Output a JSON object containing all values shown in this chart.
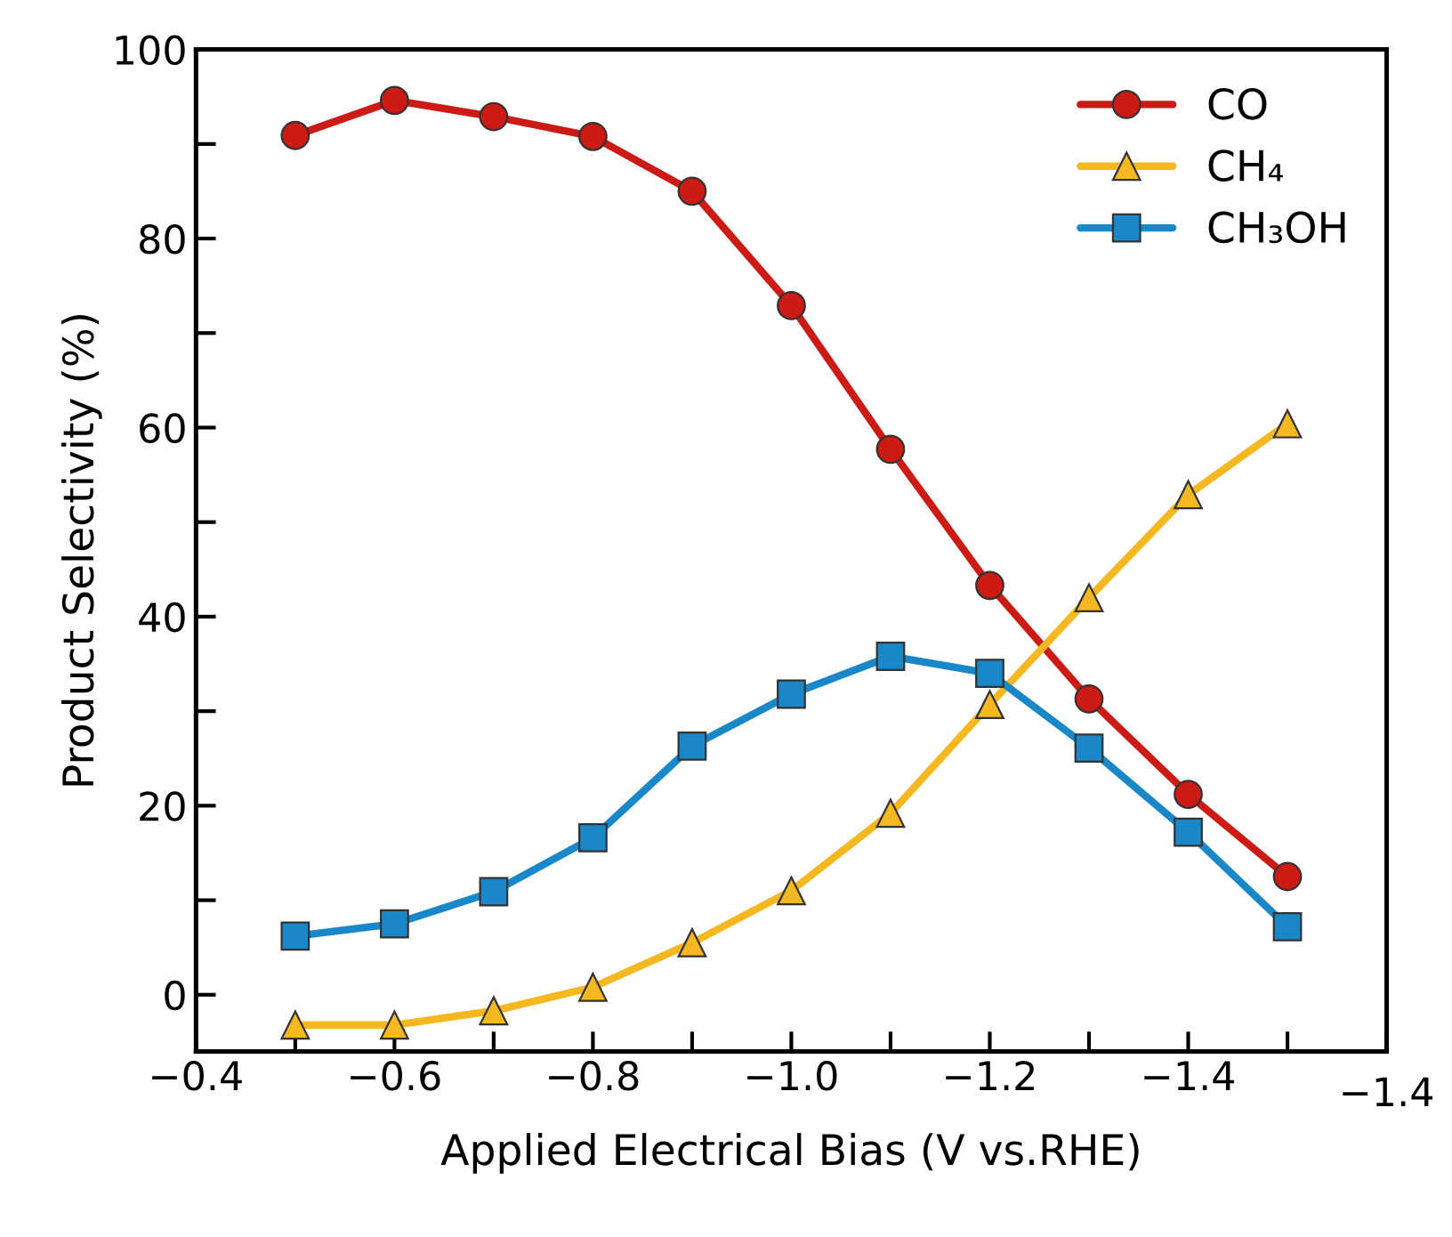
{
  "chart_data": {
    "type": "line",
    "xlabel": "Applied Electrical Bias (V vs.RHE)",
    "ylabel": "Product Selectivity (%)",
    "x": [
      -0.5,
      -0.6,
      -0.7,
      -0.8,
      -0.9,
      -1.0,
      -1.1,
      -1.2,
      -1.3,
      -1.4,
      -1.5
    ],
    "series": [
      {
        "name": "CO",
        "color": "#cc1a14",
        "marker": "circle",
        "values": [
          90.9,
          94.6,
          92.9,
          90.8,
          85.0,
          72.9,
          57.7,
          43.3,
          31.3,
          21.2,
          12.5
        ]
      },
      {
        "name": "CH₄",
        "color": "#f5b820",
        "marker": "triangle",
        "values": [
          -3.2,
          -3.2,
          -1.7,
          0.8,
          5.5,
          11.0,
          19.2,
          30.7,
          42.0,
          52.9,
          60.4
        ]
      },
      {
        "name": "CH₃OH",
        "color": "#1a88c8",
        "marker": "square",
        "values": [
          6.2,
          7.5,
          10.9,
          16.6,
          26.3,
          31.8,
          35.8,
          34.0,
          26.1,
          17.2,
          7.2
        ]
      }
    ],
    "xlim": [
      -0.4,
      -1.6
    ],
    "xticks": [
      -0.4,
      {
        "value": -0.5,
        "label": null
      },
      -0.6,
      {
        "value": -0.7,
        "label": null
      },
      -0.8,
      {
        "value": -0.9,
        "label": null
      },
      {
        "value": -1.0,
        "label": "−1.0"
      },
      {
        "value": -1.1,
        "label": null
      },
      -1.2,
      {
        "value": -1.3,
        "label": null
      },
      -1.4,
      {
        "value": -1.5,
        "label": null
      },
      {
        "value": -1.6,
        "label": null
      }
    ],
    "annotations": [
      "−1.4"
    ],
    "ylim": [
      -6,
      100
    ],
    "yticks": [
      0,
      {
        "value": 10,
        "label": null
      },
      20,
      {
        "value": 30,
        "label": null
      },
      40,
      {
        "value": 50,
        "label": null
      },
      60,
      {
        "value": 70,
        "label": null
      },
      80,
      {
        "value": 90,
        "label": null
      },
      100
    ],
    "legend": "top right",
    "grid": false,
    "line_style": "solid"
  }
}
